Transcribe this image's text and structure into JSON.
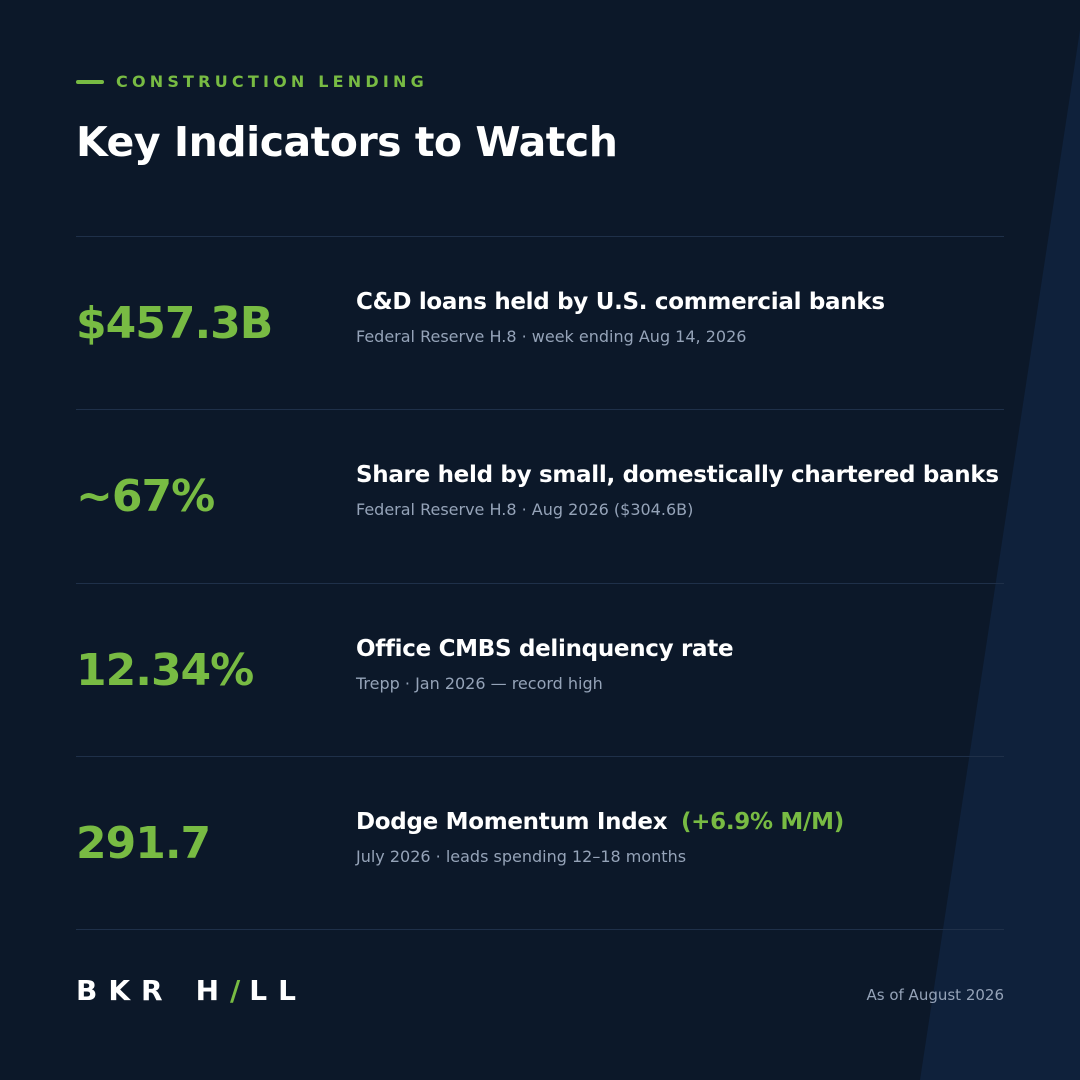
{
  "header": {
    "eyebrow": "CONSTRUCTION LENDING",
    "title": "Key Indicators to Watch"
  },
  "indicators": [
    {
      "value": "$457.3B",
      "title": "C&D loans held by U.S. commercial banks",
      "title_accent": "",
      "source": "Federal Reserve H.8 · week ending Aug 14, 2026"
    },
    {
      "value": "~67%",
      "title": "Share held by small, domestically chartered banks",
      "title_accent": "",
      "source": "Federal Reserve H.8 · Aug 2026 ($304.6B)"
    },
    {
      "value": "12.34%",
      "title": "Office CMBS delinquency rate",
      "title_accent": "",
      "source": "Trepp · Jan 2026 — record high"
    },
    {
      "value": "291.7",
      "title": "Dodge Momentum Index",
      "title_accent": "(+6.9% M/M)",
      "source": "July 2026 · leads spending 12–18 months"
    }
  ],
  "footer": {
    "logo_left": "BKR",
    "logo_right_h": "H",
    "logo_slash": "/",
    "logo_right_rest": "LL",
    "as_of": "As of August 2026"
  },
  "colors": {
    "background": "#0c1829",
    "accent_green": "#78bb43",
    "muted_text": "#95a3b8",
    "divider": "#1f3049",
    "stripe": "#0f213b"
  }
}
